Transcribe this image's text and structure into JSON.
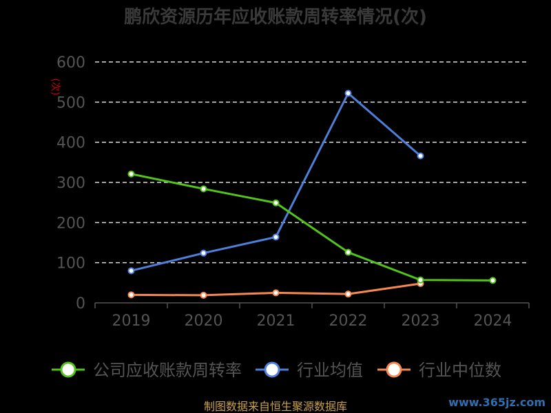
{
  "chart_data": {
    "type": "line",
    "title": "鹏欣资源历年应收账款周转率情况(次)",
    "ylabel": "(次)",
    "categories": [
      "2019",
      "2020",
      "2021",
      "2022",
      "2023",
      "2024"
    ],
    "ylim": [
      0,
      600
    ],
    "yticks": [
      0,
      100,
      200,
      300,
      400,
      500,
      600
    ],
    "grid": true,
    "legend_position": "bottom",
    "series": [
      {
        "name": "公司应收账款周转率",
        "color": "#52c41a",
        "values": [
          321,
          284,
          249,
          126,
          57,
          56
        ]
      },
      {
        "name": "行业均值",
        "color": "#4e7fdb",
        "values": [
          80,
          124,
          164,
          522,
          366,
          null
        ]
      },
      {
        "name": "行业中位数",
        "color": "#f5894f",
        "values": [
          20,
          19,
          25,
          22,
          48,
          null
        ]
      }
    ]
  },
  "footer": "制图数据来自恒生聚源数据库",
  "watermark": "www.365jz.com"
}
